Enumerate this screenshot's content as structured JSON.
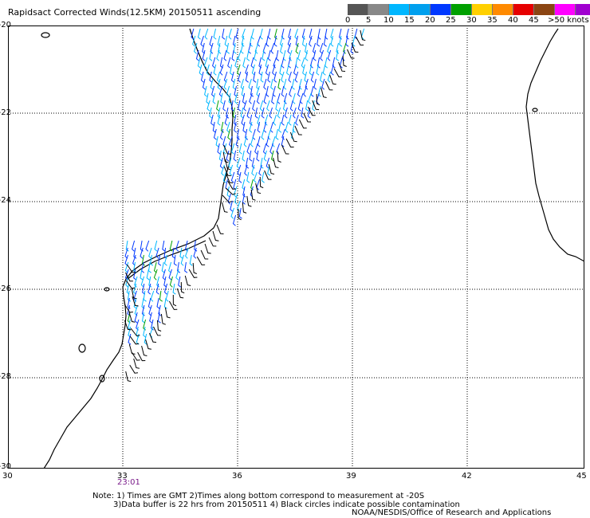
{
  "title": "Rapidsact Corrected Winds(12.5KM) 20150511 ascending",
  "legend": {
    "units_label": ">50 knots",
    "tick_labels": [
      "0",
      "5",
      "10",
      "15",
      "20",
      "25",
      "30",
      "35",
      "40",
      "45"
    ],
    "swatches": [
      {
        "range": "0-5",
        "color": "#555555"
      },
      {
        "range": "0-5",
        "color": "#888888"
      },
      {
        "range": "5-10",
        "color": "#00b7ff"
      },
      {
        "range": "5-10",
        "color": "#00a0ee"
      },
      {
        "range": "10-15",
        "color": "#0038ff"
      },
      {
        "range": "15-20",
        "color": "#00a000"
      },
      {
        "range": "20-25",
        "color": "#ffd000"
      },
      {
        "range": "25-30",
        "color": "#ff8a00"
      },
      {
        "range": "30-35",
        "color": "#e60000"
      },
      {
        "range": "35-40",
        "color": "#8b4513"
      },
      {
        "range": "40-45",
        "color": "#ff00ff"
      },
      {
        "range": "45-50",
        "color": "#a000d0"
      }
    ]
  },
  "axes": {
    "lat_labels": [
      "-20",
      "-22",
      "-24",
      "-26",
      "-28",
      "-30"
    ],
    "lon_labels": [
      "30",
      "33",
      "36",
      "39",
      "42",
      "45"
    ]
  },
  "timestamp": "23:01",
  "notes": [
    "Note: 1) Times are GMT 2)Times along bottom correspond to measurement at -20S",
    "3)Data buffer is 22 hrs from 20150511 4) Black circles indicate possible contamination",
    "NOAA/NESDIS/Office of Research and Applications"
  ],
  "colors": {
    "grid": "#000000",
    "coast": "#000000",
    "barb_light": "#00b7ff",
    "barb_blue": "#0038ff",
    "barb_green": "#00a000",
    "barb_black": "#000000"
  }
}
